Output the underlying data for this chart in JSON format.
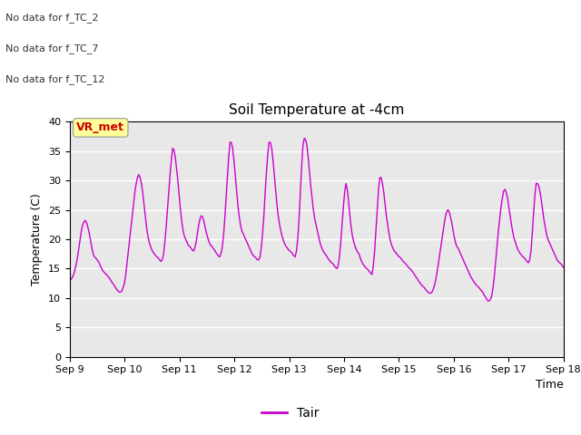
{
  "title": "Soil Temperature at -4cm",
  "ylabel": "Temperature (C)",
  "xlabel": "Time",
  "legend_label": "Tair",
  "line_color": "#CC00CC",
  "background_color": "#E8E8E8",
  "ylim": [
    0,
    40
  ],
  "yticks": [
    0,
    5,
    10,
    15,
    20,
    25,
    30,
    35,
    40
  ],
  "annotations": [
    "No data for f_TC_2",
    "No data for f_TC_7",
    "No data for f_TC_12"
  ],
  "annotation_color": "#333333",
  "vr_box_text": "VR_met",
  "vr_box_color": "#CC0000",
  "vr_box_bg": "#FFFF99",
  "data_points": [
    13.0,
    13.2,
    13.5,
    14.0,
    14.8,
    15.8,
    17.0,
    18.5,
    20.0,
    21.5,
    22.5,
    23.0,
    23.2,
    22.8,
    22.0,
    21.0,
    19.8,
    18.5,
    17.5,
    17.0,
    16.8,
    16.5,
    16.2,
    15.8,
    15.2,
    14.8,
    14.5,
    14.2,
    14.0,
    13.8,
    13.5,
    13.2,
    12.8,
    12.5,
    12.2,
    11.8,
    11.5,
    11.2,
    11.0,
    11.0,
    11.2,
    11.8,
    12.5,
    14.0,
    16.0,
    18.0,
    20.0,
    22.0,
    24.0,
    26.0,
    28.0,
    29.5,
    30.5,
    31.0,
    30.5,
    29.5,
    28.0,
    26.0,
    24.0,
    22.0,
    20.5,
    19.5,
    18.8,
    18.2,
    17.8,
    17.5,
    17.2,
    17.0,
    16.8,
    16.5,
    16.2,
    16.5,
    17.5,
    19.5,
    22.0,
    25.0,
    28.0,
    31.0,
    33.5,
    35.5,
    35.2,
    34.0,
    32.0,
    30.0,
    27.5,
    25.0,
    23.0,
    21.5,
    20.5,
    20.0,
    19.5,
    19.0,
    18.8,
    18.5,
    18.2,
    18.0,
    18.5,
    19.5,
    21.0,
    22.5,
    23.5,
    24.0,
    23.8,
    23.0,
    22.0,
    21.0,
    20.2,
    19.5,
    19.0,
    18.8,
    18.5,
    18.2,
    17.8,
    17.5,
    17.2,
    17.0,
    17.5,
    18.5,
    20.5,
    23.5,
    27.0,
    30.5,
    34.0,
    36.5,
    36.5,
    35.5,
    33.5,
    31.0,
    28.5,
    26.0,
    24.0,
    22.5,
    21.5,
    21.0,
    20.5,
    20.0,
    19.5,
    19.0,
    18.5,
    18.0,
    17.5,
    17.2,
    17.0,
    16.8,
    16.5,
    16.5,
    17.0,
    18.5,
    21.0,
    24.0,
    28.0,
    31.5,
    34.5,
    36.5,
    36.5,
    35.5,
    33.5,
    31.0,
    28.5,
    26.0,
    24.0,
    22.5,
    21.5,
    20.5,
    19.8,
    19.2,
    18.8,
    18.5,
    18.2,
    18.0,
    17.8,
    17.5,
    17.2,
    17.0,
    18.0,
    20.0,
    23.5,
    28.0,
    32.5,
    36.0,
    37.2,
    37.0,
    36.0,
    34.0,
    31.5,
    29.0,
    27.0,
    25.0,
    23.5,
    22.5,
    21.5,
    20.5,
    19.5,
    18.8,
    18.2,
    17.8,
    17.5,
    17.2,
    16.8,
    16.5,
    16.2,
    16.0,
    15.8,
    15.5,
    15.2,
    15.0,
    15.5,
    17.0,
    19.5,
    22.5,
    25.5,
    28.0,
    29.5,
    28.5,
    26.5,
    24.0,
    22.0,
    20.5,
    19.5,
    18.8,
    18.2,
    17.8,
    17.5,
    16.8,
    16.2,
    15.8,
    15.5,
    15.2,
    15.0,
    14.8,
    14.5,
    14.2,
    14.0,
    15.5,
    18.0,
    21.5,
    25.0,
    28.5,
    30.5,
    30.5,
    29.5,
    28.0,
    26.0,
    24.0,
    22.5,
    21.0,
    19.8,
    19.0,
    18.5,
    18.0,
    17.8,
    17.5,
    17.2,
    17.0,
    16.8,
    16.5,
    16.2,
    16.0,
    15.8,
    15.5,
    15.2,
    15.0,
    14.8,
    14.5,
    14.2,
    13.8,
    13.5,
    13.2,
    12.8,
    12.5,
    12.2,
    12.0,
    11.8,
    11.5,
    11.2,
    11.0,
    10.8,
    10.8,
    11.0,
    11.5,
    12.2,
    13.2,
    14.5,
    16.0,
    17.5,
    19.0,
    20.5,
    22.0,
    23.5,
    24.5,
    25.0,
    24.8,
    24.0,
    23.0,
    21.8,
    20.5,
    19.5,
    18.8,
    18.5,
    18.0,
    17.5,
    17.0,
    16.5,
    16.0,
    15.5,
    15.0,
    14.5,
    14.0,
    13.5,
    13.2,
    12.8,
    12.5,
    12.2,
    12.0,
    11.8,
    11.5,
    11.2,
    11.0,
    10.5,
    10.2,
    9.8,
    9.5,
    9.5,
    9.8,
    10.5,
    12.0,
    14.0,
    16.5,
    19.0,
    21.5,
    23.5,
    25.5,
    27.0,
    28.2,
    28.5,
    28.0,
    27.0,
    25.5,
    24.0,
    22.5,
    21.2,
    20.2,
    19.5,
    18.8,
    18.2,
    17.8,
    17.5,
    17.2,
    17.0,
    16.8,
    16.5,
    16.2,
    16.0,
    16.5,
    18.0,
    21.0,
    24.5,
    27.5,
    29.5,
    29.5,
    29.0,
    28.0,
    26.5,
    24.8,
    23.2,
    22.0,
    20.8,
    20.0,
    19.5,
    19.0,
    18.5,
    18.0,
    17.5,
    17.0,
    16.5,
    16.2,
    16.0,
    15.8,
    15.5,
    15.2
  ]
}
